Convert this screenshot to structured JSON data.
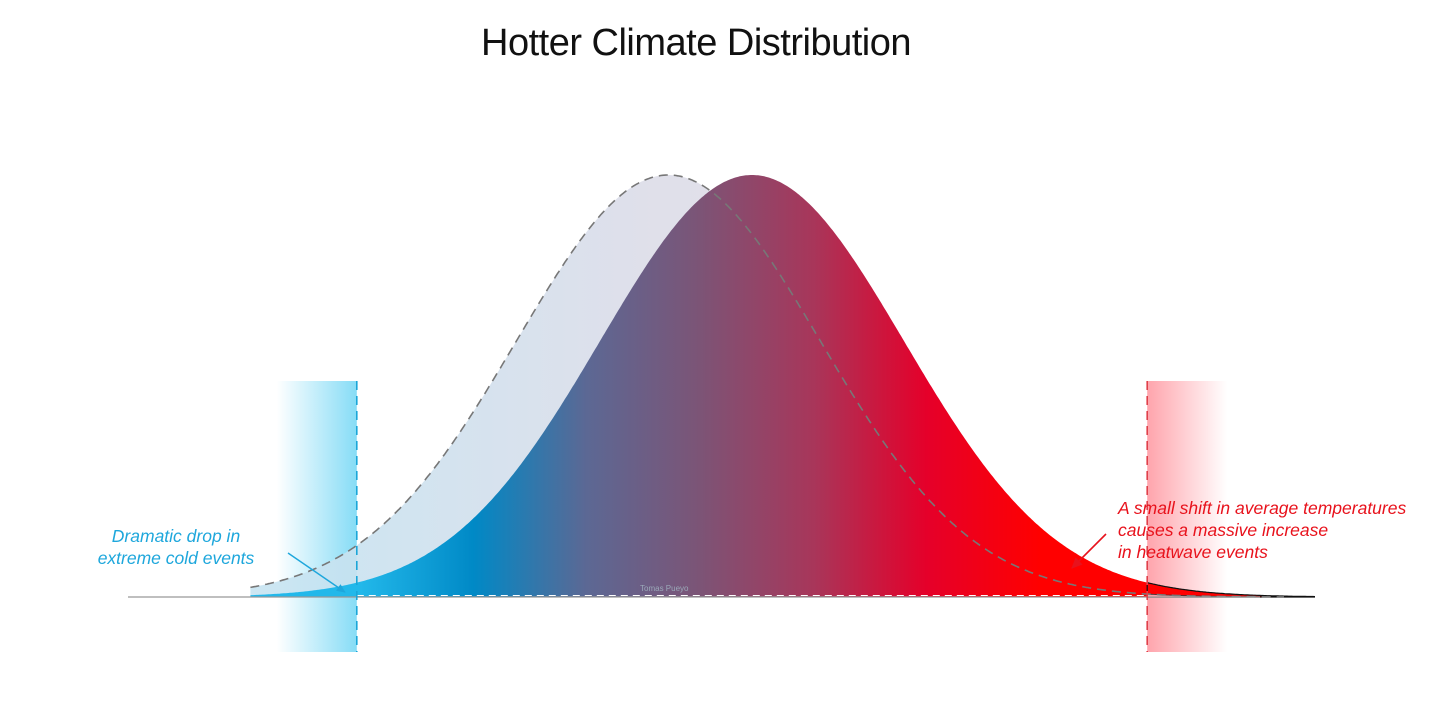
{
  "chart_data": {
    "type": "area",
    "title": "Hotter Climate Distribution",
    "xlabel": "",
    "ylabel": "",
    "grid": false,
    "legend": "none",
    "x_range": [
      -3.7,
      3.7
    ],
    "thresholds": {
      "cold": -2.6,
      "hot": 2.6
    },
    "series": [
      {
        "role": "baseline",
        "style": "dashed",
        "mean": -0.55,
        "sd": 1.0,
        "color": "#dfe3ee"
      },
      {
        "role": "shifted",
        "style": "solid",
        "mean": 0.0,
        "sd": 1.0,
        "color_stops": [
          "#22b8ea",
          "#0089c6",
          "#5c6894",
          "#7c5476",
          "#a8365a",
          "#e5002a",
          "#ff0000"
        ]
      }
    ],
    "annotations": [
      {
        "id": "cold",
        "lines": [
          "Dramatic drop in",
          "extreme cold events"
        ],
        "color": "#1ea7dc"
      },
      {
        "id": "heat",
        "lines": [
          "A small shift in average temperatures",
          "causes a massive increase",
          "in heatwave events"
        ],
        "color": "#e8121c"
      }
    ],
    "watermark": "Tomas Pueyo"
  }
}
